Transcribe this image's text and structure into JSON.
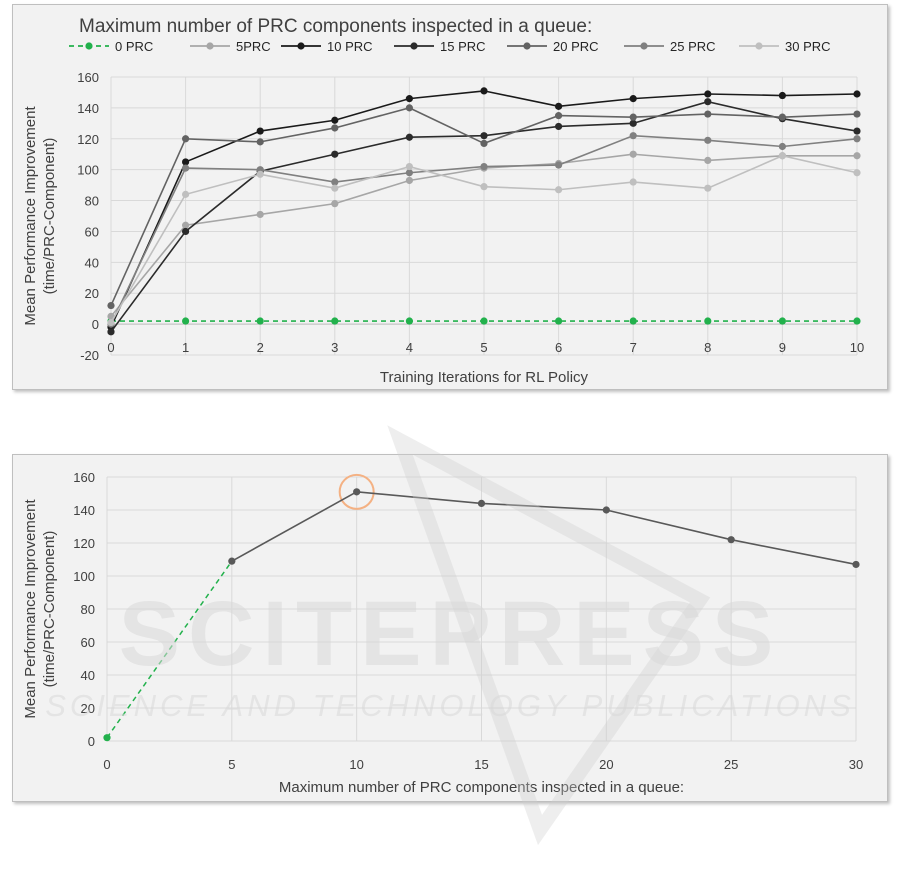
{
  "chart_data": [
    {
      "type": "line",
      "title": "Maximum number of PRC components inspected in a queue:",
      "xlabel": "Training Iterations for RL Policy",
      "ylabel_lines": [
        "Mean Performance Improvement",
        "(time/PRC-Component)"
      ],
      "x": [
        0,
        1,
        2,
        3,
        4,
        5,
        6,
        7,
        8,
        9,
        10
      ],
      "ylim": [
        -20,
        160
      ],
      "yticks": [
        -20,
        0,
        20,
        40,
        60,
        80,
        100,
        120,
        140,
        160
      ],
      "grid": true,
      "legend_position": "top",
      "series": [
        {
          "name": "0 PRC",
          "color": "#22b14c",
          "dashed": true,
          "values": [
            2,
            2,
            2,
            2,
            2,
            2,
            2,
            2,
            2,
            2,
            2
          ]
        },
        {
          "name": "5PRC",
          "color": "#a6a6a6",
          "dashed": false,
          "values": [
            5,
            64,
            71,
            78,
            93,
            101,
            104,
            110,
            106,
            109,
            109
          ]
        },
        {
          "name": "10 PRC",
          "color": "#1a1a1a",
          "dashed": false,
          "values": [
            -2,
            105,
            125,
            132,
            146,
            151,
            141,
            146,
            149,
            148,
            149
          ]
        },
        {
          "name": "15 PRC",
          "color": "#2b2b2b",
          "dashed": false,
          "values": [
            -5,
            60,
            99,
            110,
            121,
            122,
            128,
            130,
            144,
            133,
            125
          ]
        },
        {
          "name": "20 PRC",
          "color": "#636363",
          "dashed": false,
          "values": [
            12,
            120,
            118,
            127,
            140,
            117,
            135,
            134,
            136,
            134,
            136
          ]
        },
        {
          "name": "25 PRC",
          "color": "#808080",
          "dashed": false,
          "values": [
            0,
            101,
            100,
            92,
            98,
            102,
            103,
            122,
            119,
            115,
            120
          ]
        },
        {
          "name": "30 PRC",
          "color": "#bfbfbf",
          "dashed": false,
          "values": [
            1,
            84,
            97,
            88,
            102,
            89,
            87,
            92,
            88,
            109,
            98
          ]
        }
      ]
    },
    {
      "type": "line",
      "xlabel": "Maximum number of PRC components inspected in a queue:",
      "ylabel_lines": [
        "Mean Performance Improvement",
        "(time/PRC-Component)"
      ],
      "x": [
        0,
        5,
        10,
        15,
        20,
        25,
        30
      ],
      "ylim": [
        0,
        160
      ],
      "yticks": [
        0,
        20,
        40,
        60,
        80,
        100,
        120,
        140,
        160
      ],
      "grid": true,
      "highlight_x": 10,
      "highlight_color": "#f4b183",
      "dashed_segment": {
        "from_x": 0,
        "to_x": 5,
        "color": "#22b14c"
      },
      "series": [
        {
          "color": "#595959",
          "values": [
            2,
            109,
            151,
            144,
            140,
            122,
            107
          ]
        }
      ]
    }
  ],
  "watermark": {
    "main": "SCITEPRESS",
    "sub": "SCIENCE AND TECHNOLOGY PUBLICATIONS"
  }
}
